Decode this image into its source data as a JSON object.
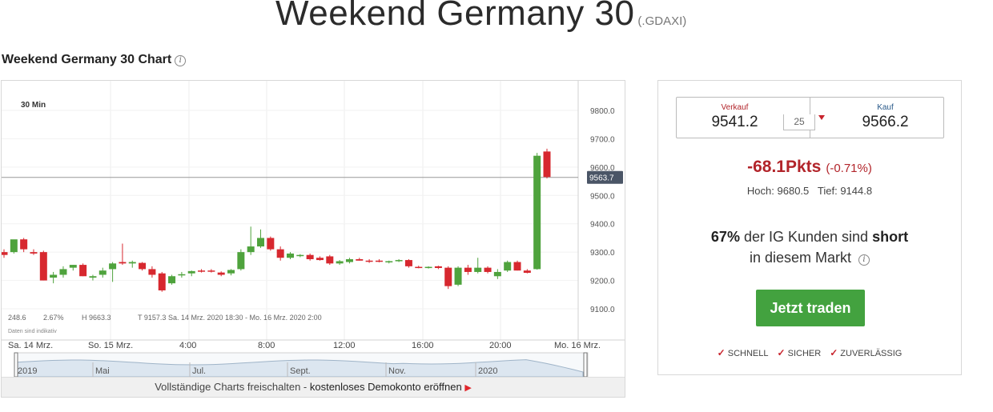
{
  "page": {
    "title": "Weekend Germany 30",
    "code": "(.GDAXI)"
  },
  "chart_section": {
    "heading": "Weekend Germany 30 Chart",
    "info_icon": "info-icon"
  },
  "chart_data": {
    "type": "candlestick",
    "interval_label": "30 Min",
    "current_price_label": "9563.7",
    "ylim": [
      9040,
      9900
    ],
    "y_ticks": [
      9100.0,
      9200.0,
      9300.0,
      9400.0,
      9500.0,
      9600.0,
      9700.0,
      9800.0
    ],
    "y_tick_labels": [
      "9100.0",
      "9200.0",
      "9300.0",
      "9400.0",
      "9500.0",
      "9600.0",
      "9700.0",
      "9800.0"
    ],
    "x_labels": [
      "Sa. 14 Mrz.",
      "So. 15 Mrz.",
      "4:00",
      "8:00",
      "12:00",
      "16:00",
      "20:00",
      "Mo. 16 Mrz."
    ],
    "info_line": [
      "248.6",
      "2.67%",
      "H 9663.3",
      "T 9157.3",
      "Sa. 14 Mrz. 2020 18:30 - Mo. 16 Mrz. 2020 2:00"
    ],
    "disclaimer": "Daten sind indikativ",
    "colors": {
      "up": "#4fa33d",
      "down": "#d7282f"
    },
    "candles": [
      {
        "o": 9300,
        "h": 9310,
        "l": 9280,
        "c": 9290
      },
      {
        "o": 9300,
        "h": 9340,
        "l": 9295,
        "c": 9345
      },
      {
        "o": 9345,
        "h": 9350,
        "l": 9300,
        "c": 9310
      },
      {
        "o": 9300,
        "h": 9310,
        "l": 9290,
        "c": 9295
      },
      {
        "o": 9300,
        "h": 9305,
        "l": 9200,
        "c": 9200
      },
      {
        "o": 9210,
        "h": 9230,
        "l": 9190,
        "c": 9220
      },
      {
        "o": 9220,
        "h": 9250,
        "l": 9210,
        "c": 9240
      },
      {
        "o": 9245,
        "h": 9255,
        "l": 9235,
        "c": 9255
      },
      {
        "o": 9255,
        "h": 9260,
        "l": 9215,
        "c": 9215
      },
      {
        "o": 9210,
        "h": 9220,
        "l": 9200,
        "c": 9215
      },
      {
        "o": 9220,
        "h": 9245,
        "l": 9210,
        "c": 9235
      },
      {
        "o": 9240,
        "h": 9265,
        "l": 9195,
        "c": 9260
      },
      {
        "o": 9265,
        "h": 9330,
        "l": 9255,
        "c": 9260
      },
      {
        "o": 9260,
        "h": 9270,
        "l": 9245,
        "c": 9265
      },
      {
        "o": 9262,
        "h": 9265,
        "l": 9235,
        "c": 9240
      },
      {
        "o": 9240,
        "h": 9250,
        "l": 9210,
        "c": 9220
      },
      {
        "o": 9225,
        "h": 9230,
        "l": 9160,
        "c": 9165
      },
      {
        "o": 9190,
        "h": 9220,
        "l": 9185,
        "c": 9215
      },
      {
        "o": 9220,
        "h": 9230,
        "l": 9210,
        "c": 9222
      },
      {
        "o": 9225,
        "h": 9235,
        "l": 9215,
        "c": 9233
      },
      {
        "o": 9235,
        "h": 9240,
        "l": 9228,
        "c": 9233
      },
      {
        "o": 9235,
        "h": 9240,
        "l": 9228,
        "c": 9233
      },
      {
        "o": 9228,
        "h": 9232,
        "l": 9215,
        "c": 9220
      },
      {
        "o": 9225,
        "h": 9240,
        "l": 9218,
        "c": 9237
      },
      {
        "o": 9240,
        "h": 9310,
        "l": 9235,
        "c": 9300
      },
      {
        "o": 9300,
        "h": 9390,
        "l": 9290,
        "c": 9320
      },
      {
        "o": 9320,
        "h": 9380,
        "l": 9315,
        "c": 9350
      },
      {
        "o": 9350,
        "h": 9355,
        "l": 9305,
        "c": 9310
      },
      {
        "o": 9310,
        "h": 9320,
        "l": 9270,
        "c": 9280
      },
      {
        "o": 9280,
        "h": 9300,
        "l": 9275,
        "c": 9295
      },
      {
        "o": 9288,
        "h": 9293,
        "l": 9282,
        "c": 9290
      },
      {
        "o": 9290,
        "h": 9295,
        "l": 9270,
        "c": 9275
      },
      {
        "o": 9280,
        "h": 9285,
        "l": 9270,
        "c": 9272
      },
      {
        "o": 9285,
        "h": 9290,
        "l": 9255,
        "c": 9260
      },
      {
        "o": 9260,
        "h": 9272,
        "l": 9255,
        "c": 9268
      },
      {
        "o": 9265,
        "h": 9280,
        "l": 9260,
        "c": 9275
      },
      {
        "o": 9275,
        "h": 9280,
        "l": 9270,
        "c": 9270
      },
      {
        "o": 9270,
        "h": 9275,
        "l": 9262,
        "c": 9268
      },
      {
        "o": 9270,
        "h": 9275,
        "l": 9264,
        "c": 9266
      },
      {
        "o": 9265,
        "h": 9270,
        "l": 9260,
        "c": 9268
      },
      {
        "o": 9270,
        "h": 9275,
        "l": 9265,
        "c": 9272
      },
      {
        "o": 9272,
        "h": 9275,
        "l": 9245,
        "c": 9250
      },
      {
        "o": 9248,
        "h": 9252,
        "l": 9243,
        "c": 9245
      },
      {
        "o": 9245,
        "h": 9250,
        "l": 9242,
        "c": 9248
      },
      {
        "o": 9250,
        "h": 9252,
        "l": 9240,
        "c": 9244
      },
      {
        "o": 9245,
        "h": 9250,
        "l": 9170,
        "c": 9180
      },
      {
        "o": 9185,
        "h": 9250,
        "l": 9180,
        "c": 9245
      },
      {
        "o": 9245,
        "h": 9255,
        "l": 9220,
        "c": 9230
      },
      {
        "o": 9230,
        "h": 9280,
        "l": 9225,
        "c": 9245
      },
      {
        "o": 9245,
        "h": 9250,
        "l": 9225,
        "c": 9230
      },
      {
        "o": 9215,
        "h": 9240,
        "l": 9205,
        "c": 9230
      },
      {
        "o": 9235,
        "h": 9270,
        "l": 9230,
        "c": 9265
      },
      {
        "o": 9265,
        "h": 9270,
        "l": 9235,
        "c": 9235
      },
      {
        "o": 9235,
        "h": 9240,
        "l": 9225,
        "c": 9227
      },
      {
        "o": 9240,
        "h": 9650,
        "l": 9238,
        "c": 9640
      },
      {
        "o": 9655,
        "h": 9665,
        "l": 9560,
        "c": 9565
      }
    ],
    "overview": {
      "labels": [
        "2019",
        "Mai",
        "Jul.",
        "Sept.",
        "Nov.",
        "2020"
      ]
    }
  },
  "unlock_bar": {
    "text": "Vollständige Charts freischalten - ",
    "link": "kostenloses Demokonto eröffnen",
    "arrow": "▶"
  },
  "trade_panel": {
    "sell_label": "Verkauf",
    "sell_price": "9541.2",
    "buy_label": "Kauf",
    "buy_price": "9566.2",
    "spread": "25",
    "change_points": "-68.1Pkts",
    "change_percent": "(-0.71%)",
    "high_label": "Hoch:",
    "high_value": "9680.5",
    "low_label": "Tief:",
    "low_value": "9144.8",
    "sentiment_percent": "67%",
    "sentiment_text_1": " der IG Kunden sind ",
    "sentiment_direction": "short",
    "sentiment_text_2": "in diesem Markt",
    "trade_button": "Jetzt traden",
    "features": [
      "SCHNELL",
      "SICHER",
      "ZUVERLÄSSIG"
    ]
  }
}
